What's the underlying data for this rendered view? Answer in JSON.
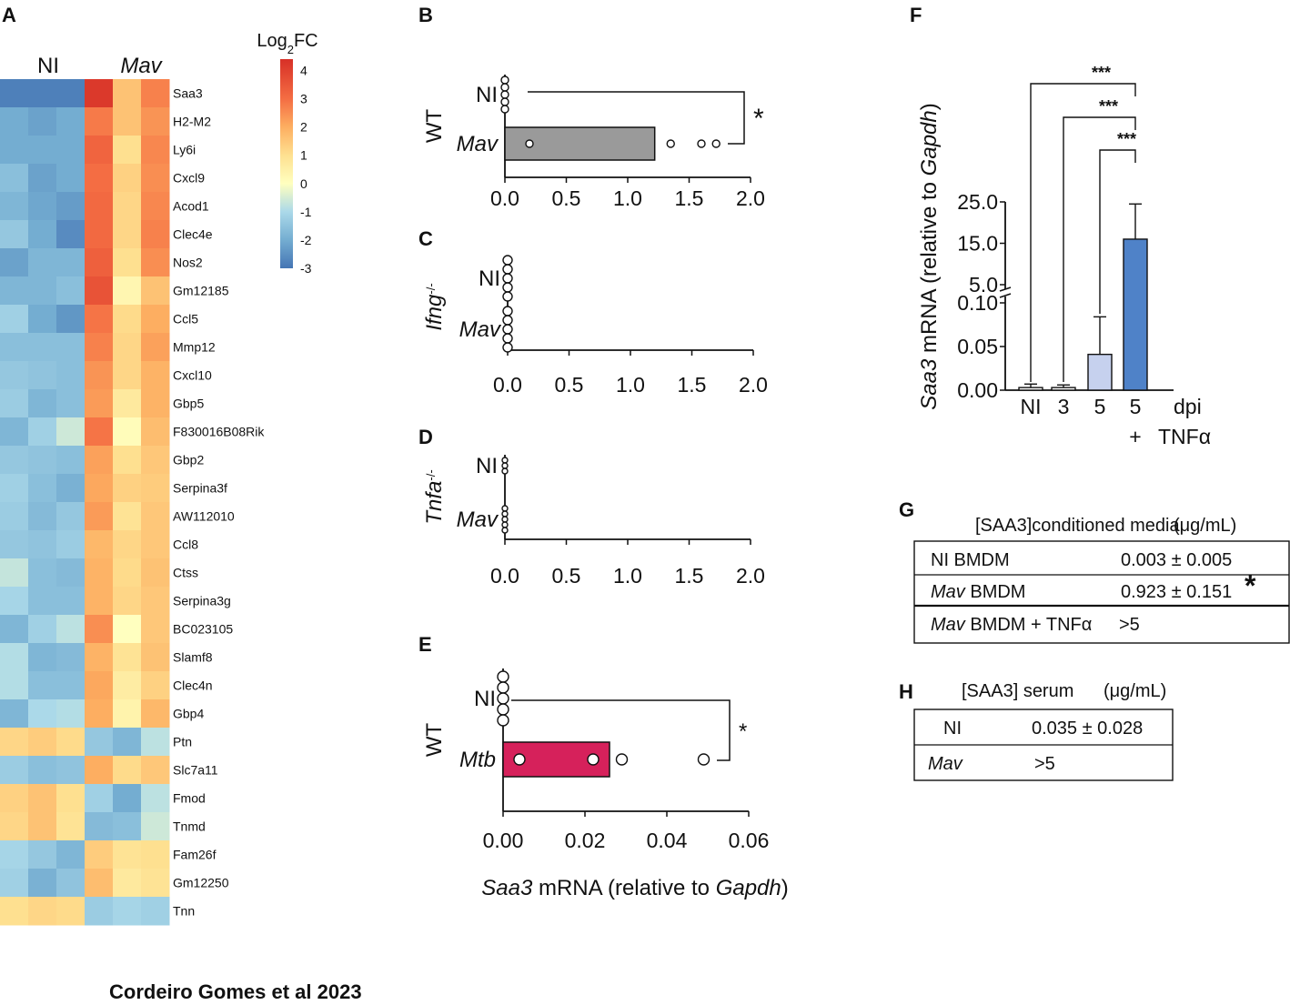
{
  "footer": "Cordeiro Gomes et al 2023",
  "heatmap": {
    "panel": "A",
    "groups": [
      "NI",
      "Mav"
    ],
    "genes": [
      "Saa3",
      "H2-M2",
      "Ly6i",
      "Cxcl9",
      "Acod1",
      "Clec4e",
      "Nos2",
      "Gm12185",
      "Ccl5",
      "Mmp12",
      "Cxcl10",
      "Gbp5",
      "F830016B08Rik",
      "Gbp2",
      "Serpina3f",
      "AW112010",
      "Ccl8",
      "Ctss",
      "Serpina3g",
      "BC023105",
      "Slamf8",
      "Clec4n",
      "Gbp4",
      "Ptn",
      "Slc7a11",
      "Fmod",
      "Tnmd",
      "Fam26f",
      "Gm12250",
      "Tnn"
    ],
    "values": [
      [
        -2.8,
        -2.8,
        -2.8,
        4.2,
        1.6,
        2.7
      ],
      [
        -2.0,
        -2.2,
        -2.0,
        2.8,
        1.6,
        2.4
      ],
      [
        -2.0,
        -2.0,
        -2.0,
        3.2,
        1.0,
        2.6
      ],
      [
        -1.6,
        -2.2,
        -2.0,
        3.0,
        1.3,
        2.5
      ],
      [
        -1.8,
        -2.1,
        -2.3,
        3.1,
        1.2,
        2.6
      ],
      [
        -1.4,
        -2.0,
        -2.6,
        3.1,
        1.2,
        2.7
      ],
      [
        -2.2,
        -1.8,
        -1.8,
        3.3,
        1.0,
        2.5
      ],
      [
        -1.8,
        -1.8,
        -1.6,
        3.6,
        0.3,
        1.6
      ],
      [
        -1.2,
        -2.0,
        -2.4,
        2.9,
        1.1,
        2.0
      ],
      [
        -1.6,
        -1.6,
        -1.6,
        2.7,
        1.2,
        2.2
      ],
      [
        -1.4,
        -1.5,
        -1.6,
        2.4,
        1.2,
        1.9
      ],
      [
        -1.3,
        -1.8,
        -1.6,
        2.3,
        0.7,
        1.9
      ],
      [
        -1.8,
        -1.2,
        -0.6,
        2.9,
        0.1,
        1.7
      ],
      [
        -1.4,
        -1.5,
        -1.6,
        2.2,
        1.0,
        1.5
      ],
      [
        -1.2,
        -1.6,
        -1.9,
        2.1,
        1.3,
        1.4
      ],
      [
        -1.3,
        -1.7,
        -1.4,
        2.3,
        0.9,
        1.5
      ],
      [
        -1.4,
        -1.5,
        -1.3,
        1.8,
        1.2,
        1.5
      ],
      [
        -0.7,
        -1.6,
        -1.7,
        1.9,
        1.1,
        1.6
      ],
      [
        -1.1,
        -1.6,
        -1.6,
        1.9,
        1.2,
        1.5
      ],
      [
        -1.8,
        -1.2,
        -0.8,
        2.5,
        0.0,
        1.5
      ],
      [
        -0.9,
        -1.8,
        -1.7,
        1.9,
        0.9,
        1.6
      ],
      [
        -0.9,
        -1.6,
        -1.6,
        2.1,
        0.6,
        1.3
      ],
      [
        -1.8,
        -1.0,
        -0.9,
        2.0,
        0.4,
        1.8
      ],
      [
        1.2,
        1.4,
        1.1,
        -1.4,
        -1.8,
        -0.8
      ],
      [
        -1.3,
        -1.6,
        -1.5,
        2.0,
        1.1,
        1.5
      ],
      [
        1.3,
        1.6,
        1.0,
        -1.2,
        -2.0,
        -0.8
      ],
      [
        1.2,
        1.6,
        0.9,
        -1.7,
        -1.6,
        -0.6
      ],
      [
        -1.1,
        -1.4,
        -1.8,
        1.4,
        0.9,
        1.0
      ],
      [
        -1.2,
        -1.9,
        -1.5,
        1.7,
        0.7,
        0.9
      ],
      [
        1.0,
        1.2,
        1.1,
        -1.3,
        -1.1,
        -1.2
      ]
    ],
    "colorbar": {
      "title_prefix": "Log",
      "title_sub": "2",
      "title_suffix": "FC",
      "ticks": [
        "4",
        "3",
        "2",
        "1",
        "0",
        "-1",
        "-2",
        "-3"
      ],
      "min": -3,
      "max": 4.4
    }
  },
  "chart_data": [
    {
      "panel": "B",
      "type": "bar",
      "orientation": "horizontal",
      "genotype": "WT",
      "categories": [
        "NI",
        "Mav"
      ],
      "values": [
        0.0,
        1.22
      ],
      "points": [
        [
          0,
          0,
          0,
          0,
          0
        ],
        [
          0.2,
          1.35,
          1.6,
          1.72
        ]
      ],
      "bar_colors": [
        "#ffffff",
        "#9a9a9a"
      ],
      "xlim": [
        0,
        2.0
      ],
      "ticks": [
        "0.0",
        "0.5",
        "1.0",
        "1.5",
        "2.0"
      ],
      "tick_values": [
        0,
        0.5,
        1.0,
        1.5,
        2.0
      ],
      "significance": "*"
    },
    {
      "panel": "C",
      "type": "scatter",
      "orientation": "horizontal",
      "genotype_base": "Ifng",
      "genotype_sup": "-/-",
      "categories": [
        "NI",
        "Mav"
      ],
      "values": [
        0.0,
        0.0
      ],
      "points": [
        [
          0,
          0,
          0,
          0,
          0
        ],
        [
          0,
          0,
          0,
          0,
          0
        ]
      ],
      "xlim": [
        0,
        2.0
      ],
      "ticks": [
        "0.0",
        "0.5",
        "1.0",
        "1.5",
        "2.0"
      ],
      "tick_values": [
        0,
        0.5,
        1.0,
        1.5,
        2.0
      ]
    },
    {
      "panel": "D",
      "type": "scatter",
      "orientation": "horizontal",
      "genotype_base": "Tnfa",
      "genotype_sup": "-/-",
      "categories": [
        "NI",
        "Mav"
      ],
      "values": [
        0.0,
        0.0
      ],
      "points": [
        [
          0,
          0,
          0
        ],
        [
          0,
          0,
          0,
          0,
          0
        ]
      ],
      "xlim": [
        0,
        2.0
      ],
      "ticks": [
        "0.0",
        "0.5",
        "1.0",
        "1.5",
        "2.0"
      ],
      "tick_values": [
        0,
        0.5,
        1.0,
        1.5,
        2.0
      ]
    },
    {
      "panel": "E",
      "type": "bar",
      "orientation": "horizontal",
      "genotype": "WT",
      "categories": [
        "NI",
        "Mtb"
      ],
      "values": [
        0.0,
        0.026
      ],
      "points": [
        [
          0,
          0,
          0,
          0,
          0
        ],
        [
          0.004,
          0.022,
          0.029,
          0.049
        ]
      ],
      "bar_colors": [
        "#ffffff",
        "#d6215b"
      ],
      "xlim": [
        0,
        0.06
      ],
      "ticks": [
        "0.00",
        "0.02",
        "0.04",
        "0.06"
      ],
      "tick_values": [
        0,
        0.02,
        0.04,
        0.06
      ],
      "significance": "*",
      "xlabel_parts": [
        "Saa3",
        " mRNA (relative to ",
        "Gapdh",
        ")"
      ]
    },
    {
      "panel": "F",
      "type": "bar",
      "orientation": "vertical",
      "categories": [
        "NI",
        "3",
        "5",
        "5"
      ],
      "category_sub": [
        "",
        "",
        "",
        "+"
      ],
      "axis_note_top": "dpi",
      "axis_note_bottom": "TNFα",
      "values": [
        0.003,
        0.003,
        0.041,
        16.0
      ],
      "errors": [
        0.004,
        0.003,
        0.043,
        8.5
      ],
      "bar_colors": [
        "#ffffff",
        "#ffffff",
        "#c6d1ee",
        "#4f82c8"
      ],
      "ticks_lower": [
        "0.00",
        "0.05",
        "0.10"
      ],
      "tick_values_lower": [
        0,
        0.05,
        0.1
      ],
      "ticks_upper": [
        "5.0",
        "15.0",
        "25.0"
      ],
      "tick_values_upper": [
        5,
        15,
        25
      ],
      "ylabel_parts": [
        "Saa3",
        " mRNA (relative to ",
        "Gapdh",
        ")"
      ],
      "significance": [
        "***",
        "***",
        "***"
      ]
    }
  ],
  "table_g": {
    "panel": "G",
    "title": "[SAA3]conditioned media",
    "unit": "(μg/mL)",
    "rows": [
      {
        "label_it": "",
        "label": "NI BMDM",
        "value": "0.003 ± 0.005",
        "mark": ""
      },
      {
        "label_it": "Mav",
        "label": " BMDM",
        "value": "0.923 ± 0.151",
        "mark": "*"
      },
      {
        "label_it": "Mav",
        "label": " BMDM + TNFα",
        "value": ">5",
        "mark": ""
      }
    ]
  },
  "table_h": {
    "panel": "H",
    "title": "[SAA3] serum",
    "unit": "(μg/mL)",
    "rows": [
      {
        "label_it": "",
        "label": "NI",
        "value": "0.035 ± 0.028"
      },
      {
        "label_it": "Mav",
        "label": "",
        "value": ">5"
      }
    ]
  }
}
